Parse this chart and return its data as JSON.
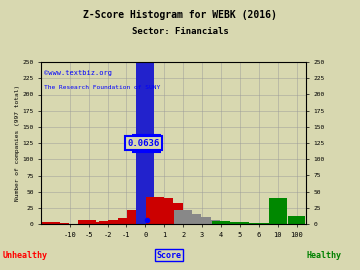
{
  "title": "Z-Score Histogram for WEBK (2016)",
  "subtitle": "Sector: Financials",
  "watermark1": "©www.textbiz.org",
  "watermark2": "The Research Foundation of SUNY",
  "xlabel_left": "Unhealthy",
  "xlabel_mid": "Score",
  "xlabel_right": "Healthy",
  "score_label": "0.0636",
  "ylim": [
    0,
    250
  ],
  "background_color": "#d8d8b0",
  "grid_color": "#999999",
  "tick_positions": [
    -10,
    -5,
    -2,
    -1,
    0,
    1,
    2,
    3,
    4,
    5,
    6,
    10,
    100
  ],
  "ytick_vals": [
    0,
    25,
    50,
    75,
    100,
    125,
    150,
    175,
    200,
    225,
    250
  ],
  "bars": [
    [
      -11.0,
      3,
      "red"
    ],
    [
      -10.5,
      1,
      "red"
    ],
    [
      -5.5,
      6,
      "red"
    ],
    [
      -5.0,
      3,
      "red"
    ],
    [
      -4.5,
      2,
      "red"
    ],
    [
      -4.0,
      2,
      "red"
    ],
    [
      -3.5,
      2,
      "red"
    ],
    [
      -3.0,
      3,
      "red"
    ],
    [
      -2.5,
      3,
      "red"
    ],
    [
      -2.0,
      5,
      "red"
    ],
    [
      -1.5,
      7,
      "red"
    ],
    [
      -1.0,
      9,
      "red"
    ],
    [
      -0.5,
      22,
      "red"
    ],
    [
      0.0,
      248,
      "blue"
    ],
    [
      0.5,
      42,
      "red"
    ],
    [
      1.0,
      40,
      "red"
    ],
    [
      1.5,
      32,
      "red"
    ],
    [
      2.0,
      22,
      "gray"
    ],
    [
      2.5,
      16,
      "gray"
    ],
    [
      3.0,
      11,
      "gray"
    ],
    [
      3.5,
      7,
      "gray"
    ],
    [
      4.0,
      5,
      "green"
    ],
    [
      4.5,
      4,
      "green"
    ],
    [
      5.0,
      3,
      "green"
    ],
    [
      5.5,
      2,
      "green"
    ],
    [
      6.0,
      2,
      "green"
    ],
    [
      6.5,
      1,
      "green"
    ],
    [
      10.0,
      40,
      "green"
    ],
    [
      100.0,
      12,
      "green"
    ]
  ],
  "color_map": {
    "red": "#cc0000",
    "blue": "#2222cc",
    "gray": "#888888",
    "green": "#008800"
  }
}
